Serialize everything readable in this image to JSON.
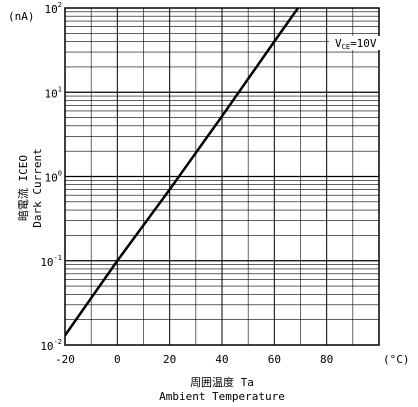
{
  "chart_data": {
    "type": "line",
    "xlabel_jp": "周囲温度 Ta",
    "xlabel_en": "Ambient Temperature",
    "ylabel_jp": "暗電流 ICEO",
    "ylabel_en": "Dark Current",
    "y_unit": "(nA)",
    "x_unit": "(°C)",
    "x_ticks": [
      "-20",
      "0",
      "20",
      "40",
      "60",
      "80"
    ],
    "y_ticks": [
      {
        "base": "10",
        "exp": "2"
      },
      {
        "base": "10",
        "exp": "1"
      },
      {
        "base": "10",
        "exp": "0"
      },
      {
        "base": "10",
        "exp": "-1"
      },
      {
        "base": "10",
        "exp": "-2"
      }
    ],
    "xlim": [
      -20,
      100
    ],
    "ylim": [
      0.01,
      100
    ],
    "y_scale": "log",
    "grid": true,
    "legend_position": "top-right",
    "series": [
      {
        "name": "VCE=10V",
        "x": [
          -20,
          0,
          20,
          40,
          60,
          70
        ],
        "y": [
          0.013,
          0.1,
          0.7,
          5.2,
          40,
          110
        ],
        "color": "#000000"
      }
    ]
  }
}
